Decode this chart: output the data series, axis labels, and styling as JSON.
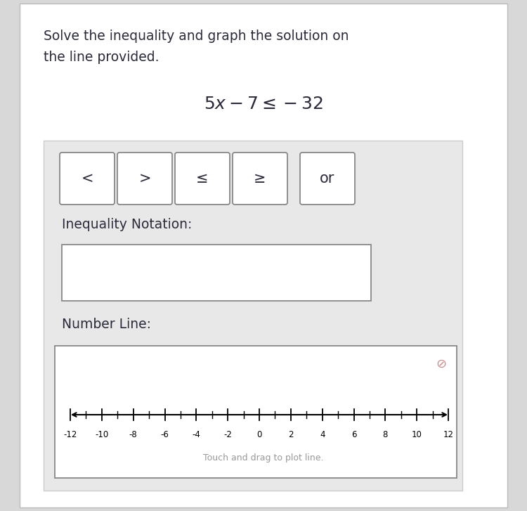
{
  "title_line1": "Solve the inequality and graph the solution on",
  "title_line2": "the line provided.",
  "buttons": [
    "<",
    ">",
    "≤",
    "≥",
    "or"
  ],
  "inequality_label": "Inequality Notation:",
  "number_line_label": "Number Line:",
  "number_line_ticks": [
    -12,
    -10,
    -8,
    -6,
    -4,
    -2,
    0,
    2,
    4,
    6,
    8,
    10,
    12
  ],
  "drag_text": "Touch and drag to plot line.",
  "page_bg": "#ffffff",
  "gray_bg": "#e8e8e8",
  "outer_bg": "#d8d8d8",
  "dark_text": "#2a2a3a",
  "button_border": "#999999",
  "cancel_color": "#cc8888"
}
